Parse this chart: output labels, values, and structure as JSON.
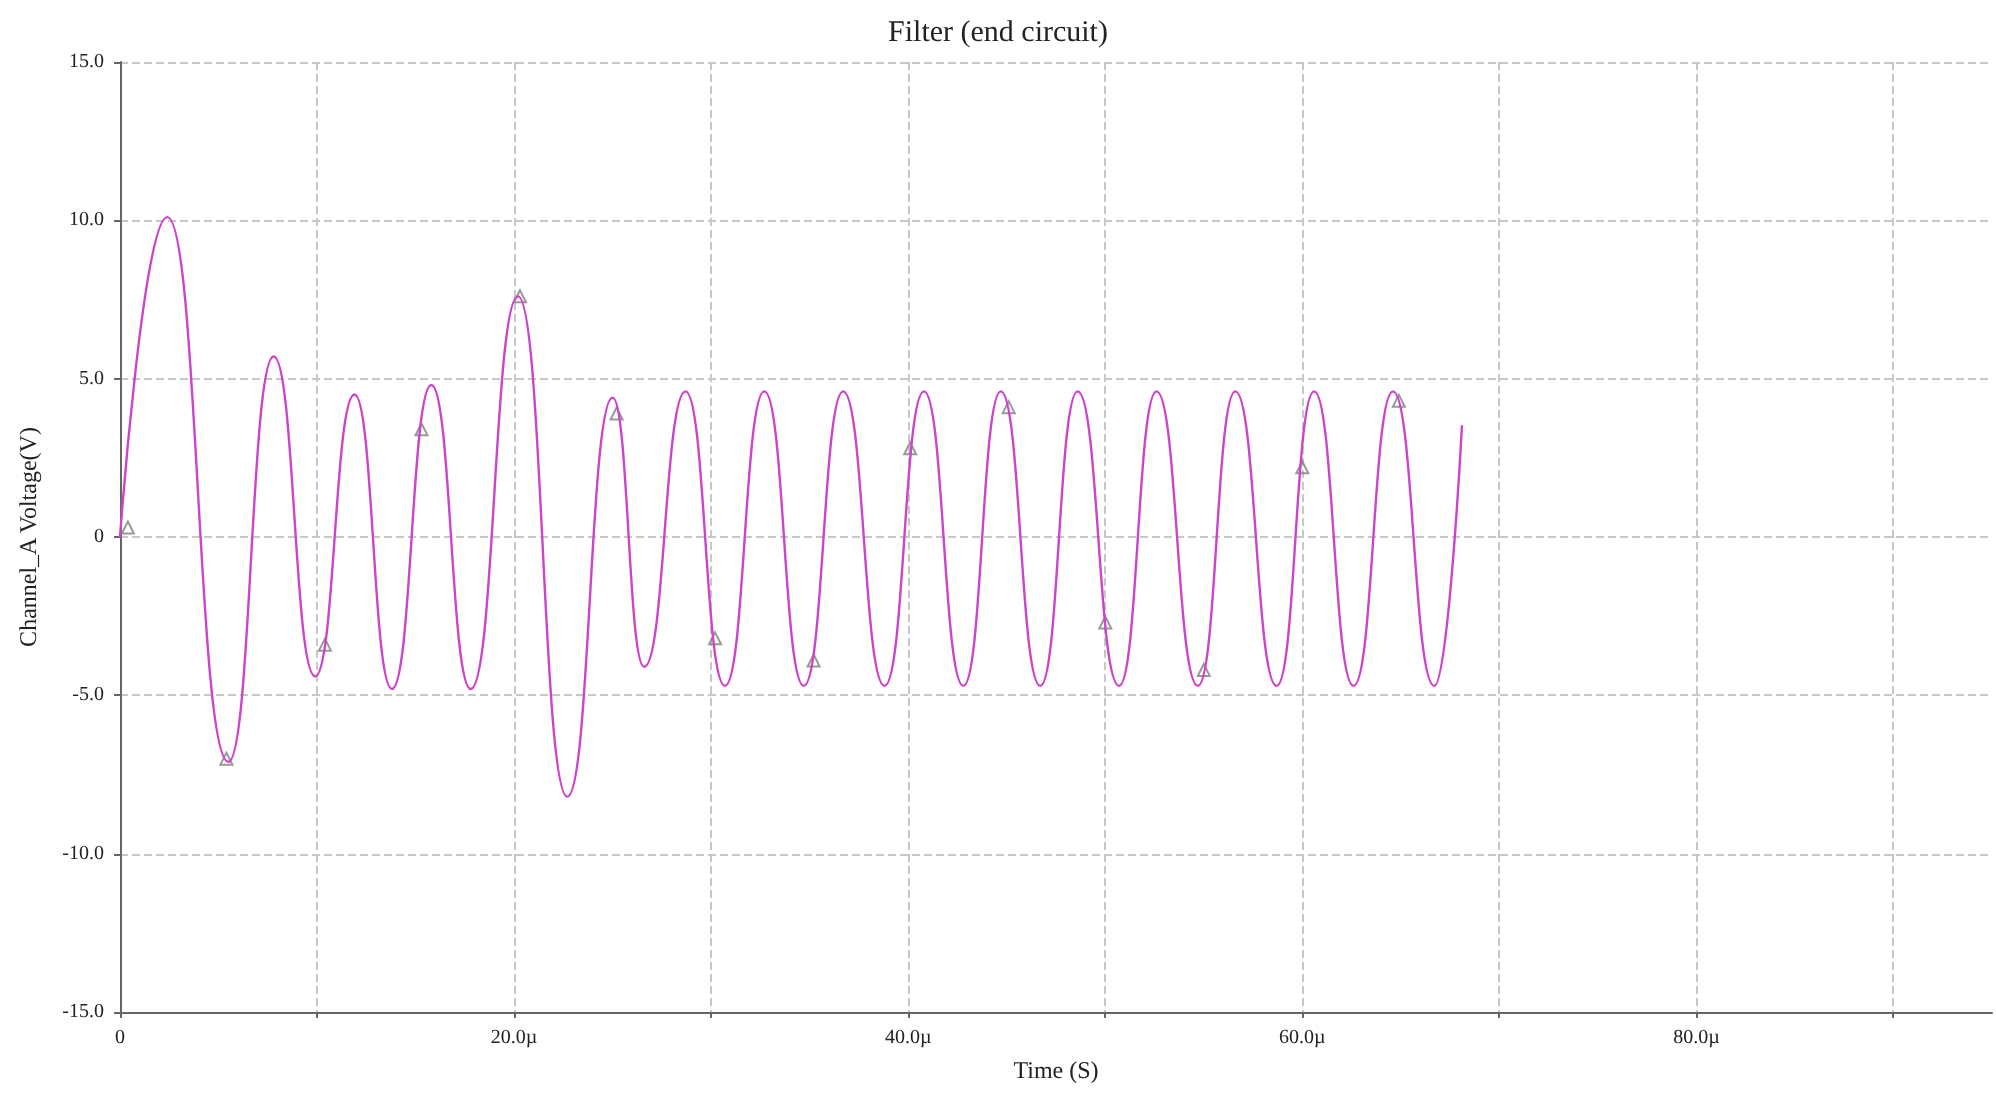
{
  "chart_data": {
    "type": "line",
    "title": "Filter (end circuit)",
    "xlabel": "Time (S)",
    "ylabel": "Channel_A Voltage(V)",
    "xlim": [
      0,
      95
    ],
    "xticks": [
      0,
      {
        "value": 10,
        "label": null
      },
      {
        "value": 20,
        "label": "20.0µ"
      },
      {
        "value": 30,
        "label": null
      },
      {
        "value": 40,
        "label": "40.0µ"
      },
      {
        "value": 50,
        "label": null
      },
      {
        "value": 60,
        "label": "60.0µ"
      },
      {
        "value": 70,
        "label": null
      },
      {
        "value": 80,
        "label": "80.0µ"
      },
      {
        "value": 90,
        "label": null
      }
    ],
    "ylim": [
      -15,
      15
    ],
    "yticks": [
      {
        "value": -15,
        "label": "-15.0"
      },
      {
        "value": -10,
        "label": "-10.0"
      },
      {
        "value": -5,
        "label": "-5.0"
      },
      0,
      {
        "value": 5,
        "label": "5.0"
      },
      {
        "value": 10,
        "label": "10.0"
      },
      {
        "value": 15,
        "label": "15.0"
      }
    ],
    "grid": true,
    "line_style": "solid",
    "series": [
      {
        "color": "#cc44cc",
        "marker": "none",
        "x": [
          0,
          2.4,
          5.5,
          7.8,
          9.9,
          11.9,
          13.8,
          15.8,
          17.8,
          20.2,
          22.7,
          25.0,
          26.6,
          28.7,
          30.7,
          32.7,
          34.7,
          36.7,
          38.8,
          40.8,
          42.8,
          44.7,
          46.7,
          48.6,
          50.7,
          52.6,
          54.7,
          56.6,
          58.7,
          60.6,
          62.6,
          64.6,
          66.7,
          68.1
        ],
        "values": [
          0,
          10.1,
          -7.1,
          5.7,
          -4.4,
          4.5,
          -4.8,
          4.8,
          -4.8,
          7.6,
          -8.2,
          4.4,
          -4.1,
          4.6,
          -4.7,
          4.6,
          -4.7,
          4.6,
          -4.7,
          4.6,
          -4.7,
          4.6,
          -4.7,
          4.6,
          -4.7,
          4.6,
          -4.7,
          4.6,
          -4.7,
          4.6,
          -4.7,
          4.6,
          -4.7,
          3.5
        ]
      },
      {
        "type": "scatter",
        "color": "#808080",
        "marker": "triangle",
        "x": [
          0.4,
          5.4,
          10.4,
          15.3,
          20.3,
          25.2,
          30.2,
          35.2,
          40.1,
          45.1,
          50.0,
          55.0,
          60.0,
          64.9
        ],
        "values": [
          0.3,
          -7.0,
          -3.4,
          3.4,
          7.6,
          3.9,
          -3.2,
          -3.9,
          2.8,
          4.1,
          -2.7,
          -4.2,
          2.2,
          4.3
        ]
      }
    ]
  }
}
